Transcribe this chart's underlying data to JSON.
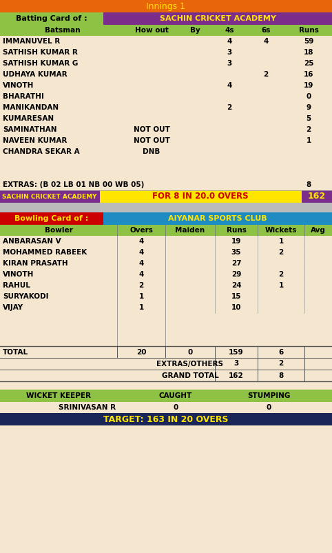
{
  "innings_title": "Innings 1",
  "batting_card_label": "Batting Card of :",
  "batting_team": "SACHIN CRICKET ACADEMY",
  "bat_headers": [
    "Batsman",
    "How out",
    "By",
    "4s",
    "6s",
    "Runs"
  ],
  "batsmen": [
    {
      "name": "IMMANUVEL R",
      "how_out": "",
      "by": "",
      "fours": "4",
      "sixes": "4",
      "runs": "59"
    },
    {
      "name": "SATHISH KUMAR R",
      "how_out": "",
      "by": "",
      "fours": "3",
      "sixes": "",
      "runs": "18"
    },
    {
      "name": "SATHISH KUMAR G",
      "how_out": "",
      "by": "",
      "fours": "3",
      "sixes": "",
      "runs": "25"
    },
    {
      "name": "UDHAYA KUMAR",
      "how_out": "",
      "by": "",
      "fours": "",
      "sixes": "2",
      "runs": "16"
    },
    {
      "name": "VINOTH",
      "how_out": "",
      "by": "",
      "fours": "4",
      "sixes": "",
      "runs": "19"
    },
    {
      "name": "BHARATHI",
      "how_out": "",
      "by": "",
      "fours": "",
      "sixes": "",
      "runs": "0"
    },
    {
      "name": "MANIKANDAN",
      "how_out": "",
      "by": "",
      "fours": "2",
      "sixes": "",
      "runs": "9"
    },
    {
      "name": "KUMARESAN",
      "how_out": "",
      "by": "",
      "fours": "",
      "sixes": "",
      "runs": "5"
    },
    {
      "name": "SAMINATHAN",
      "how_out": "NOT OUT",
      "by": "",
      "fours": "",
      "sixes": "",
      "runs": "2"
    },
    {
      "name": "NAVEEN KUMAR",
      "how_out": "NOT OUT",
      "by": "",
      "fours": "",
      "sixes": "",
      "runs": "1"
    },
    {
      "name": "CHANDRA SEKAR A",
      "how_out": "DNB",
      "by": "",
      "fours": "",
      "sixes": "",
      "runs": ""
    }
  ],
  "extras_label": "EXTRAS: (B 02 LB 01 NB 00 WB 05)",
  "extras_runs": "8",
  "summary_team": "SACHIN CRICKET ACADEMY",
  "summary_score": "FOR 8 IN 20.0 OVERS",
  "summary_runs": "162",
  "bowling_card_label": "Bowling Card of :",
  "bowling_team": "AIYANAR SPORTS CLUB",
  "bowl_headers": [
    "Bowler",
    "Overs",
    "Maiden",
    "Runs",
    "Wickets",
    "Avg"
  ],
  "bowlers": [
    {
      "name": "ANBARASAN V",
      "overs": "4",
      "maiden": "",
      "runs": "19",
      "wickets": "1",
      "avg": ""
    },
    {
      "name": "MOHAMMED RABEEK",
      "overs": "4",
      "maiden": "",
      "runs": "35",
      "wickets": "2",
      "avg": ""
    },
    {
      "name": "KIRAN PRASATH",
      "overs": "4",
      "maiden": "",
      "runs": "27",
      "wickets": "",
      "avg": ""
    },
    {
      "name": "VINOTH",
      "overs": "4",
      "maiden": "",
      "runs": "29",
      "wickets": "2",
      "avg": ""
    },
    {
      "name": "RAHUL",
      "overs": "2",
      "maiden": "",
      "runs": "24",
      "wickets": "1",
      "avg": ""
    },
    {
      "name": "SURYAKODI",
      "overs": "1",
      "maiden": "",
      "runs": "15",
      "wickets": "",
      "avg": ""
    },
    {
      "name": "VIJAY",
      "overs": "1",
      "maiden": "",
      "runs": "10",
      "wickets": "",
      "avg": ""
    }
  ],
  "total_row": [
    "TOTAL",
    "20",
    "0",
    "159",
    "6",
    ""
  ],
  "extras_row": [
    "EXTRAS/OTHERS",
    "",
    "",
    "3",
    "2",
    ""
  ],
  "grand_total_row": [
    "GRAND TOTAL",
    "",
    "",
    "162",
    "8",
    ""
  ],
  "wk_headers": [
    "WICKET KEEPER",
    "CAUGHT",
    "STUMPING"
  ],
  "wk_data": [
    "SRINIVASAN R",
    "0",
    "0"
  ],
  "target_text": "TARGET: 163 IN 20 OVERS",
  "color_orange": "#E8650A",
  "color_green": "#8DC244",
  "color_purple": "#7B2D8B",
  "color_yellow": "#FFE600",
  "color_blue": "#1E8BC3",
  "color_red": "#CC0000",
  "color_bg": "#F5E6D0",
  "color_navy": "#1A2558",
  "color_sep": "#BBBBBB",
  "color_black": "#000000"
}
